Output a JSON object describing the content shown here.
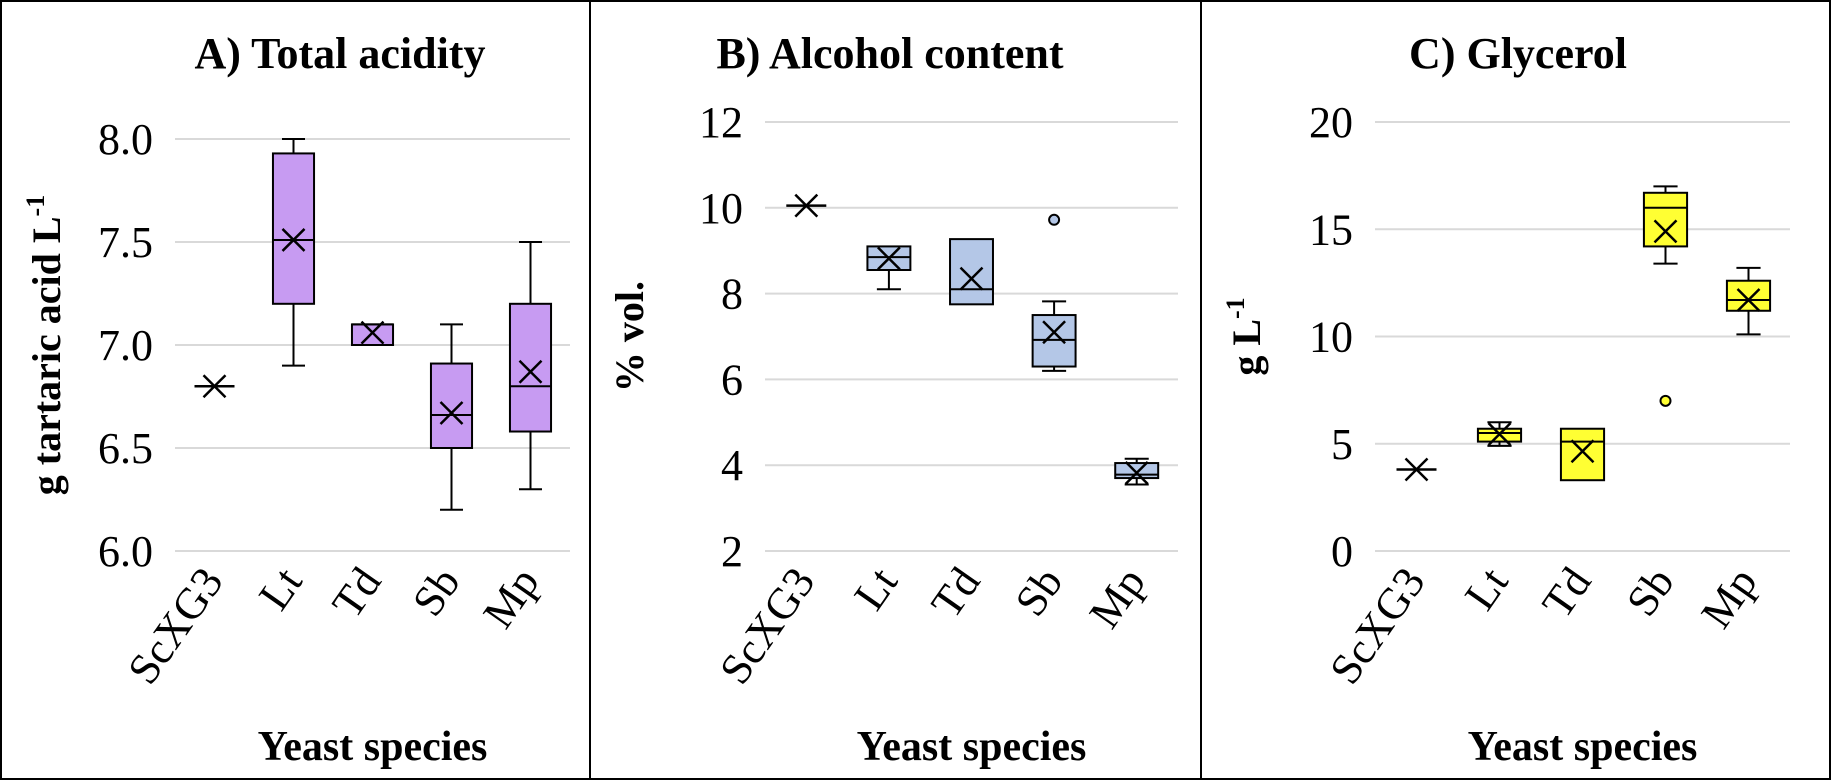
{
  "chart_data": [
    {
      "type": "box",
      "title": "A) Total acidity",
      "ylabel_main": "g tartaric acid L",
      "ylabel_sup": "-1",
      "xlabel": "Yeast species",
      "categories": [
        "ScXG3",
        "Lt",
        "Td",
        "Sb",
        "Mp"
      ],
      "ylim": [
        6.0,
        8.0
      ],
      "yticks": [
        "6.0",
        "6.5",
        "7.0",
        "7.5",
        "8.0"
      ],
      "grid": true,
      "box_color": "#C79BF2",
      "boxes": [
        {
          "category": "ScXG3",
          "min": null,
          "q1": null,
          "median": null,
          "q3": null,
          "max": null,
          "mean": 6.8,
          "outliers": []
        },
        {
          "category": "Lt",
          "min": 6.9,
          "q1": 7.2,
          "median": 7.51,
          "q3": 7.93,
          "max": 8.0,
          "mean": 7.51,
          "outliers": []
        },
        {
          "category": "Td",
          "min": 7.0,
          "q1": 7.0,
          "median": 7.1,
          "q3": 7.1,
          "max": 7.1,
          "mean": 7.06,
          "outliers": []
        },
        {
          "category": "Sb",
          "min": 6.2,
          "q1": 6.5,
          "median": 6.66,
          "q3": 6.91,
          "max": 7.1,
          "mean": 6.67,
          "outliers": []
        },
        {
          "category": "Mp",
          "min": 6.3,
          "q1": 6.58,
          "median": 6.8,
          "q3": 7.2,
          "max": 7.5,
          "mean": 6.87,
          "outliers": []
        }
      ]
    },
    {
      "type": "box",
      "title": "B) Alcohol content",
      "ylabel_main": "% vol.",
      "ylabel_sup": "",
      "xlabel": "Yeast species",
      "categories": [
        "ScXG3",
        "Lt",
        "Td",
        "Sb",
        "Mp"
      ],
      "ylim": [
        2,
        12
      ],
      "yticks": [
        "2",
        "4",
        "6",
        "8",
        "10",
        "12"
      ],
      "grid": true,
      "box_color": "#B4C7E7",
      "boxes": [
        {
          "category": "ScXG3",
          "min": null,
          "q1": null,
          "median": null,
          "q3": null,
          "max": null,
          "mean": 10.05,
          "outliers": []
        },
        {
          "category": "Lt",
          "min": 8.1,
          "q1": 8.55,
          "median": 8.85,
          "q3": 9.1,
          "max": 9.1,
          "mean": 8.82,
          "outliers": []
        },
        {
          "category": "Td",
          "min": 7.75,
          "q1": 7.75,
          "median": 8.1,
          "q3": 9.27,
          "max": 9.27,
          "mean": 8.35,
          "outliers": []
        },
        {
          "category": "Sb",
          "min": 6.2,
          "q1": 6.3,
          "median": 6.92,
          "q3": 7.5,
          "max": 7.82,
          "mean": 7.1,
          "outliers": [
            9.72
          ]
        },
        {
          "category": "Mp",
          "min": 3.55,
          "q1": 3.7,
          "median": 3.78,
          "q3": 4.05,
          "max": 4.15,
          "mean": 3.82,
          "outliers": []
        }
      ]
    },
    {
      "type": "box",
      "title": "C) Glycerol",
      "ylabel_main": "g  L",
      "ylabel_sup": "-1",
      "xlabel": "Yeast species",
      "categories": [
        "ScXG3",
        "Lt",
        "Td",
        "Sb",
        "Mp"
      ],
      "ylim": [
        0,
        20
      ],
      "yticks": [
        "0",
        "5",
        "10",
        "15",
        "20"
      ],
      "grid": true,
      "box_color": "#FFFF33",
      "boxes": [
        {
          "category": "ScXG3",
          "min": null,
          "q1": null,
          "median": null,
          "q3": null,
          "max": null,
          "mean": 3.8,
          "outliers": []
        },
        {
          "category": "Lt",
          "min": 4.9,
          "q1": 5.1,
          "median": 5.5,
          "q3": 5.7,
          "max": 6.0,
          "mean": 5.45,
          "outliers": []
        },
        {
          "category": "Td",
          "min": 3.3,
          "q1": 3.3,
          "median": 5.1,
          "q3": 5.7,
          "max": 5.7,
          "mean": 4.65,
          "outliers": []
        },
        {
          "category": "Sb",
          "min": 13.4,
          "q1": 14.2,
          "median": 16.0,
          "q3": 16.7,
          "max": 17.0,
          "mean": 14.9,
          "outliers": [
            7.0
          ]
        },
        {
          "category": "Mp",
          "min": 10.1,
          "q1": 11.2,
          "median": 11.7,
          "q3": 12.6,
          "max": 13.2,
          "mean": 11.7,
          "outliers": []
        }
      ]
    }
  ]
}
